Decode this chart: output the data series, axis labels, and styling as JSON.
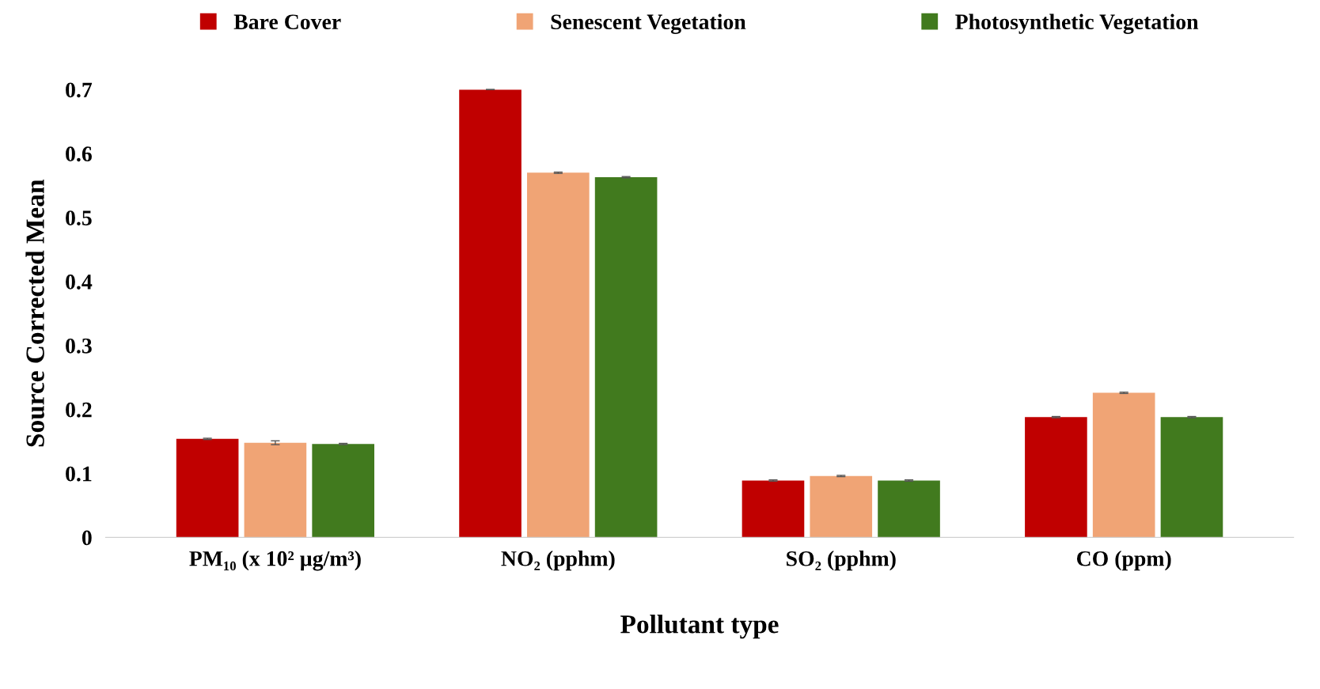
{
  "chart_data": {
    "type": "bar",
    "xlabel": "Pollutant type",
    "ylabel": "Source Corrected Mean",
    "categories": [
      "PM₁₀ (x 10² µg/m³)",
      "NO₂ (pphm)",
      "SO₂ (pphm)",
      "CO (ppm)"
    ],
    "series": [
      {
        "name": "Bare Cover",
        "color": "#c00000",
        "values": [
          0.154,
          0.7,
          0.089,
          0.188
        ],
        "errors": [
          0.001,
          null,
          0.001,
          0.001
        ]
      },
      {
        "name": "Senescent Vegetation",
        "color": "#f0a475",
        "values": [
          0.148,
          0.57,
          0.096,
          0.226
        ],
        "errors": [
          0.003,
          0.001,
          0.001,
          0.001
        ]
      },
      {
        "name": "Photosynthetic Vegetation",
        "color": "#417a1e",
        "values": [
          0.146,
          0.563,
          0.089,
          0.188
        ],
        "errors": [
          0.001,
          0.001,
          0.001,
          0.001
        ]
      }
    ],
    "ylim": [
      0,
      0.7
    ],
    "yticks": [
      0,
      0.1,
      0.2,
      0.3,
      0.4,
      0.5,
      0.6,
      0.7
    ],
    "grid": false,
    "legend": "top"
  }
}
